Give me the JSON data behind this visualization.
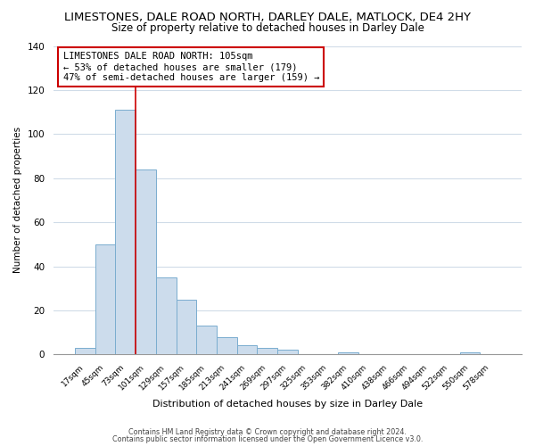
{
  "title": "LIMESTONES, DALE ROAD NORTH, DARLEY DALE, MATLOCK, DE4 2HY",
  "subtitle": "Size of property relative to detached houses in Darley Dale",
  "xlabel": "Distribution of detached houses by size in Darley Dale",
  "ylabel": "Number of detached properties",
  "bar_labels": [
    "17sqm",
    "45sqm",
    "73sqm",
    "101sqm",
    "129sqm",
    "157sqm",
    "185sqm",
    "213sqm",
    "241sqm",
    "269sqm",
    "297sqm",
    "325sqm",
    "353sqm",
    "382sqm",
    "410sqm",
    "438sqm",
    "466sqm",
    "494sqm",
    "522sqm",
    "550sqm",
    "578sqm"
  ],
  "bar_values": [
    3,
    50,
    111,
    84,
    35,
    25,
    13,
    8,
    4,
    3,
    2,
    0,
    0,
    1,
    0,
    0,
    0,
    0,
    0,
    1,
    0
  ],
  "bar_color": "#ccdcec",
  "bar_edge_color": "#7aadcf",
  "vline_color": "#cc0000",
  "annotation_text": "LIMESTONES DALE ROAD NORTH: 105sqm\n← 53% of detached houses are smaller (179)\n47% of semi-detached houses are larger (159) →",
  "annotation_box_color": "#ffffff",
  "annotation_box_edge": "#cc0000",
  "ylim": [
    0,
    140
  ],
  "yticks": [
    0,
    20,
    40,
    60,
    80,
    100,
    120,
    140
  ],
  "footer1": "Contains HM Land Registry data © Crown copyright and database right 2024.",
  "footer2": "Contains public sector information licensed under the Open Government Licence v3.0.",
  "title_fontsize": 9.5,
  "subtitle_fontsize": 8.5,
  "bg_color": "#ffffff",
  "plot_bg_color": "#ffffff",
  "grid_color": "#d0dce8"
}
